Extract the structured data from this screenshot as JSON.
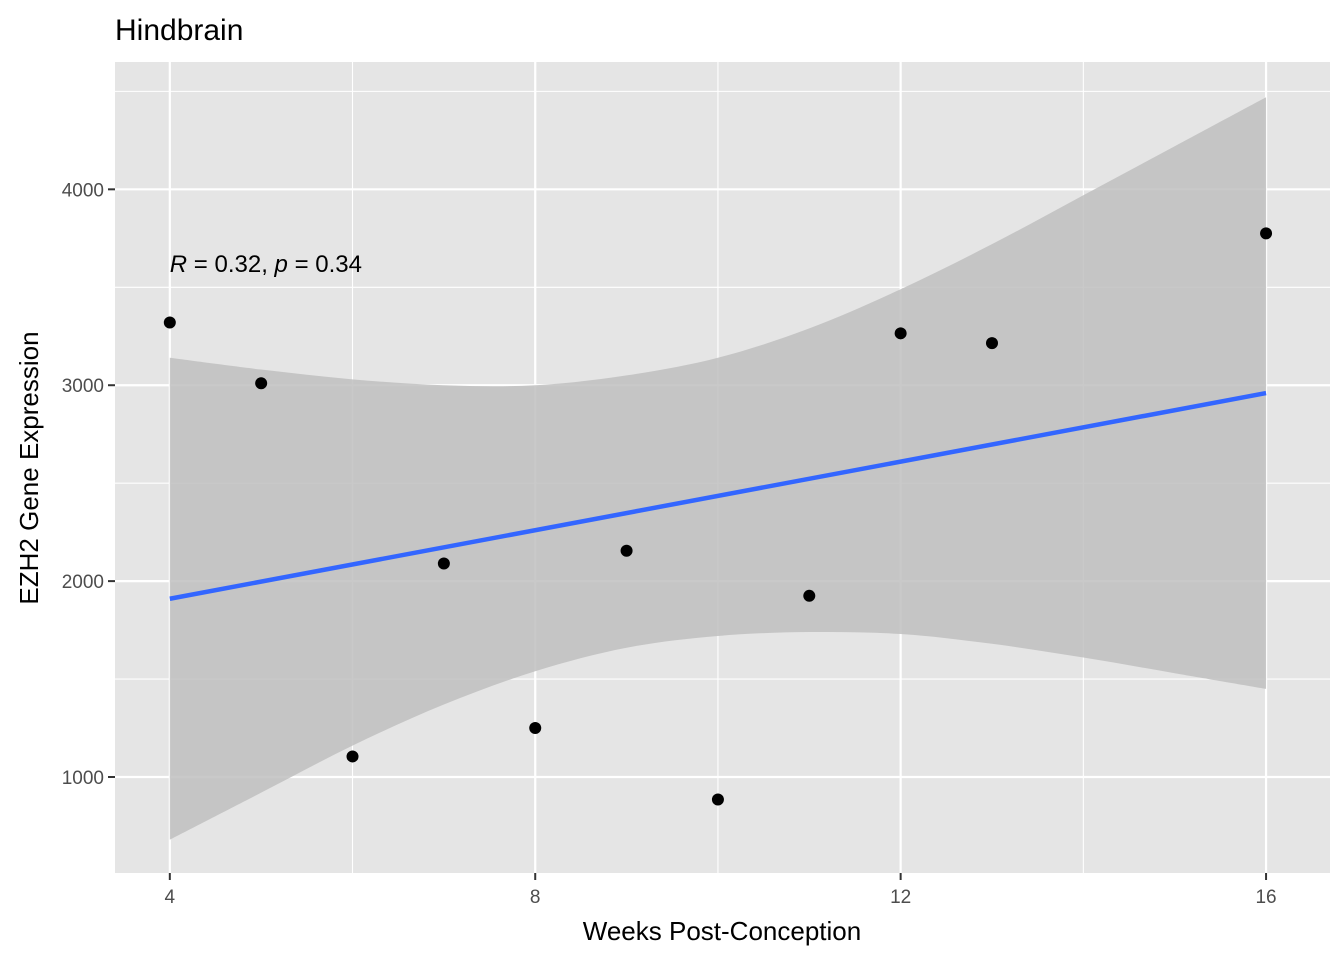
{
  "chart_data": {
    "type": "scatter",
    "title": "Hindbrain",
    "xlabel": "Weeks Post-Conception",
    "ylabel": "EZH2 Gene Expression",
    "xlim": [
      3.4,
      16.7
    ],
    "ylim": [
      510,
      4650
    ],
    "x_ticks": [
      4,
      8,
      12,
      16
    ],
    "x_minor_ticks": [
      6,
      10,
      14
    ],
    "y_ticks": [
      1000,
      2000,
      3000,
      4000
    ],
    "y_minor_ticks": [
      1500,
      2500,
      3500,
      4500
    ],
    "grid": true,
    "points": [
      {
        "x": 4,
        "y": 3320
      },
      {
        "x": 5,
        "y": 3010
      },
      {
        "x": 6,
        "y": 1105
      },
      {
        "x": 7,
        "y": 2090
      },
      {
        "x": 8,
        "y": 1250
      },
      {
        "x": 9,
        "y": 2155
      },
      {
        "x": 10,
        "y": 885
      },
      {
        "x": 11,
        "y": 1925
      },
      {
        "x": 12,
        "y": 3265
      },
      {
        "x": 13,
        "y": 3215
      },
      {
        "x": 16,
        "y": 3775
      }
    ],
    "regression": {
      "color": "#3366ff",
      "line": [
        {
          "x": 4,
          "y": 1910
        },
        {
          "x": 16,
          "y": 2960
        }
      ],
      "ci_upper": [
        {
          "x": 4,
          "y": 3140
        },
        {
          "x": 5,
          "y": 3080
        },
        {
          "x": 6,
          "y": 3030
        },
        {
          "x": 7,
          "y": 3000
        },
        {
          "x": 8,
          "y": 3000
        },
        {
          "x": 9,
          "y": 3050
        },
        {
          "x": 10,
          "y": 3140
        },
        {
          "x": 11,
          "y": 3290
        },
        {
          "x": 12,
          "y": 3490
        },
        {
          "x": 13,
          "y": 3720
        },
        {
          "x": 14,
          "y": 3970
        },
        {
          "x": 15,
          "y": 4220
        },
        {
          "x": 16,
          "y": 4470
        }
      ],
      "ci_lower": [
        {
          "x": 4,
          "y": 680
        },
        {
          "x": 5,
          "y": 920
        },
        {
          "x": 6,
          "y": 1160
        },
        {
          "x": 7,
          "y": 1370
        },
        {
          "x": 8,
          "y": 1540
        },
        {
          "x": 9,
          "y": 1660
        },
        {
          "x": 10,
          "y": 1720
        },
        {
          "x": 11,
          "y": 1740
        },
        {
          "x": 12,
          "y": 1730
        },
        {
          "x": 13,
          "y": 1680
        },
        {
          "x": 14,
          "y": 1610
        },
        {
          "x": 15,
          "y": 1530
        },
        {
          "x": 16,
          "y": 1450
        }
      ]
    },
    "annotation": {
      "r_label": "R",
      "r_value": " = 0.32, ",
      "p_label": "p",
      "p_value": " = 0.34",
      "x": 4,
      "y": 3620
    },
    "colors": {
      "panel": "#e5e5e5",
      "grid": "#ffffff",
      "point": "#000000",
      "ci_band": "#bfbfbf"
    }
  }
}
